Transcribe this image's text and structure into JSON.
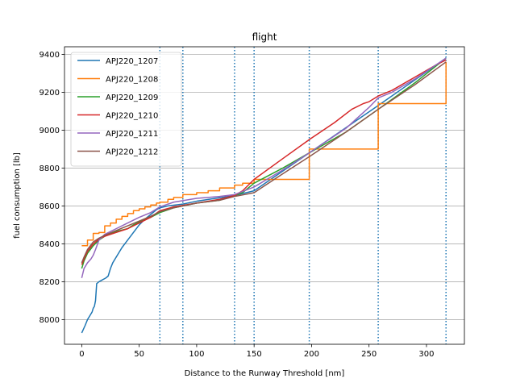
{
  "chart_data": {
    "type": "line",
    "title": "flight",
    "xlabel": "Distance to the Runway Threshold [nm]",
    "ylabel": "fuel consumption [lb]",
    "xlim": [
      -15,
      333
    ],
    "ylim": [
      7870,
      9440
    ],
    "xticks": [
      0,
      50,
      100,
      150,
      200,
      250,
      300
    ],
    "yticks": [
      8000,
      8200,
      8400,
      8600,
      8800,
      9000,
      9200,
      9400
    ],
    "grid": "horizontal",
    "legend_position": "upper left",
    "vlines": {
      "x": [
        68,
        88,
        133,
        150,
        198,
        258,
        317
      ],
      "color": "#1f77b4",
      "style": "dotted"
    },
    "series": [
      {
        "name": "APJ220_1207",
        "color": "#1f77b4",
        "x": [
          0,
          3,
          5,
          7,
          9,
          10,
          11,
          12,
          13,
          15,
          18,
          21,
          23,
          25,
          27,
          30,
          35,
          40,
          45,
          50,
          55,
          60,
          65,
          68,
          75,
          88,
          100,
          133,
          150,
          198,
          258,
          317
        ],
        "y": [
          7930,
          7970,
          8000,
          8020,
          8040,
          8060,
          8070,
          8100,
          8190,
          8200,
          8210,
          8220,
          8230,
          8270,
          8300,
          8330,
          8380,
          8420,
          8460,
          8500,
          8530,
          8555,
          8580,
          8590,
          8600,
          8610,
          8625,
          8655,
          8680,
          8880,
          9130,
          9380
        ]
      },
      {
        "name": "APJ220_1208",
        "color": "#ff7f0e",
        "step": true,
        "x": [
          0,
          5,
          10,
          15,
          20,
          25,
          30,
          35,
          40,
          45,
          50,
          55,
          60,
          65,
          68,
          75,
          80,
          88,
          100,
          110,
          120,
          133,
          140,
          150,
          198,
          258,
          317
        ],
        "y": [
          8390,
          8420,
          8455,
          8460,
          8495,
          8510,
          8530,
          8545,
          8560,
          8575,
          8585,
          8595,
          8605,
          8615,
          8620,
          8635,
          8645,
          8660,
          8670,
          8680,
          8695,
          8710,
          8720,
          8740,
          8900,
          9140,
          9360
        ]
      },
      {
        "name": "APJ220_1209",
        "color": "#2ca02c",
        "x": [
          0,
          2,
          5,
          10,
          15,
          20,
          30,
          40,
          45,
          50,
          60,
          68,
          80,
          100,
          120,
          133,
          140,
          150,
          175,
          198,
          230,
          258,
          290,
          317
        ],
        "y": [
          8270,
          8310,
          8350,
          8390,
          8420,
          8440,
          8465,
          8480,
          8500,
          8515,
          8540,
          8565,
          8590,
          8615,
          8630,
          8655,
          8670,
          8720,
          8800,
          8880,
          8990,
          9110,
          9250,
          9380
        ]
      },
      {
        "name": "APJ220_1210",
        "color": "#d62728",
        "x": [
          0,
          2,
          5,
          10,
          15,
          20,
          25,
          30,
          40,
          50,
          60,
          68,
          80,
          100,
          120,
          133,
          140,
          150,
          175,
          198,
          220,
          235,
          245,
          250,
          258,
          270,
          290,
          310,
          317
        ],
        "y": [
          8290,
          8320,
          8360,
          8400,
          8425,
          8440,
          8450,
          8460,
          8480,
          8510,
          8540,
          8575,
          8595,
          8615,
          8635,
          8655,
          8680,
          8740,
          8850,
          8950,
          9040,
          9110,
          9140,
          9150,
          9180,
          9210,
          9280,
          9350,
          9370
        ]
      },
      {
        "name": "APJ220_1211",
        "color": "#9467bd",
        "x": [
          0,
          2,
          5,
          8,
          10,
          12,
          15,
          20,
          30,
          40,
          50,
          60,
          68,
          80,
          100,
          120,
          133,
          150,
          175,
          198,
          230,
          250,
          258,
          270,
          290,
          317
        ],
        "y": [
          8220,
          8270,
          8300,
          8320,
          8340,
          8370,
          8420,
          8450,
          8480,
          8510,
          8540,
          8565,
          8595,
          8620,
          8640,
          8650,
          8660,
          8700,
          8790,
          8880,
          9010,
          9120,
          9170,
          9200,
          9270,
          9380
        ]
      },
      {
        "name": "APJ220_1212",
        "color": "#8c564b",
        "x": [
          0,
          2,
          5,
          10,
          15,
          20,
          30,
          40,
          50,
          60,
          68,
          80,
          100,
          120,
          133,
          150,
          155,
          175,
          198,
          230,
          258,
          290,
          317
        ],
        "y": [
          8300,
          8330,
          8370,
          8410,
          8430,
          8445,
          8470,
          8495,
          8520,
          8545,
          8570,
          8590,
          8615,
          8630,
          8650,
          8670,
          8690,
          8770,
          8860,
          8990,
          9110,
          9240,
          9360
        ]
      }
    ]
  }
}
